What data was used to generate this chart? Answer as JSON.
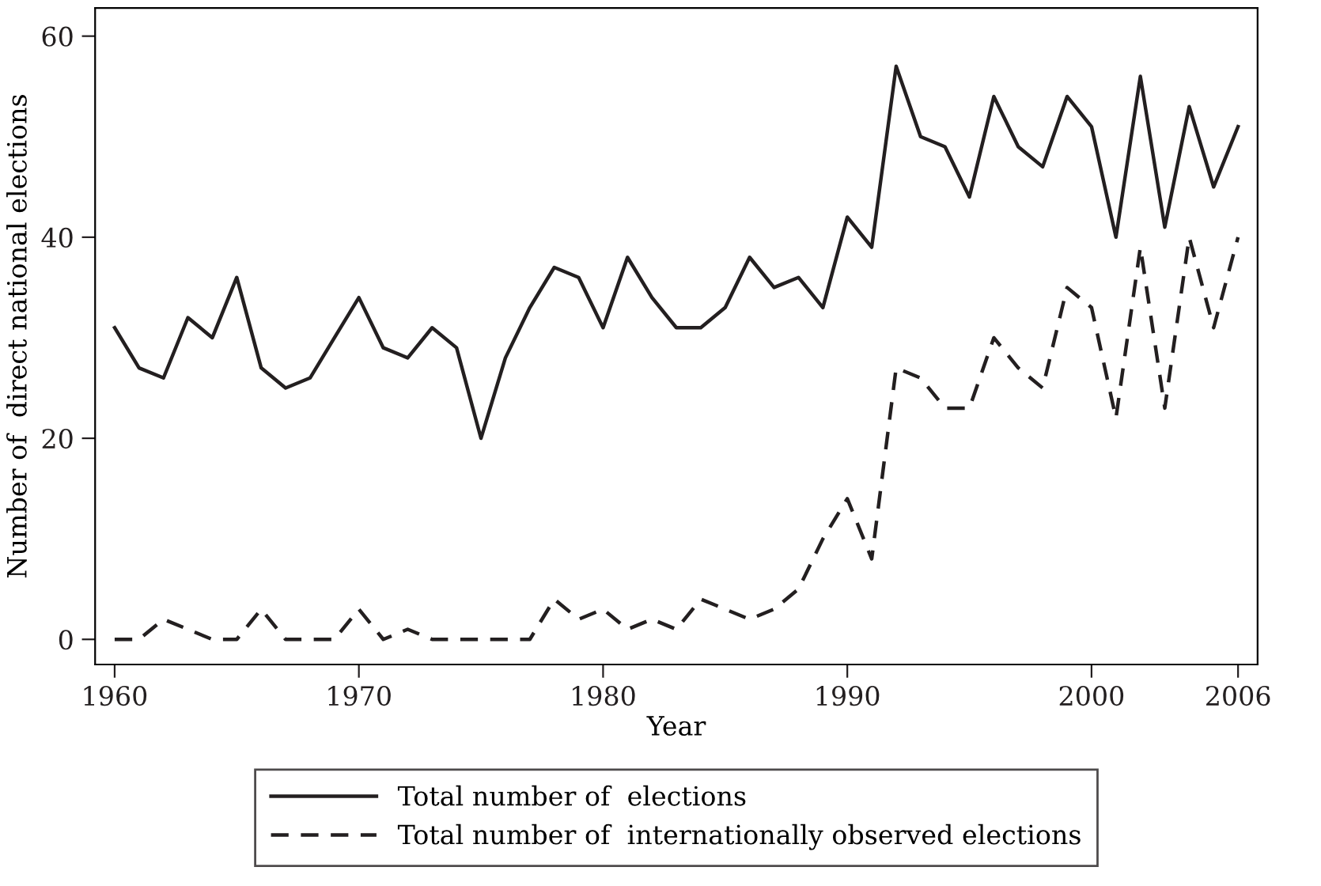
{
  "chart_data": {
    "type": "line",
    "xlabel": "Year",
    "ylabel": "Number of  direct national elections",
    "x": [
      1960,
      1961,
      1962,
      1963,
      1964,
      1965,
      1966,
      1967,
      1968,
      1969,
      1970,
      1971,
      1972,
      1973,
      1974,
      1975,
      1976,
      1977,
      1978,
      1979,
      1980,
      1981,
      1982,
      1983,
      1984,
      1985,
      1986,
      1987,
      1988,
      1989,
      1990,
      1991,
      1992,
      1993,
      1994,
      1995,
      1996,
      1997,
      1998,
      1999,
      2000,
      2001,
      2002,
      2003,
      2004,
      2005,
      2006
    ],
    "series": [
      {
        "name": "Total number of  elections",
        "color": "#231f20",
        "line_style": "solid",
        "values": [
          31,
          27,
          26,
          32,
          30,
          36,
          27,
          25,
          26,
          30,
          34,
          29,
          28,
          31,
          29,
          20,
          28,
          33,
          37,
          36,
          31,
          38,
          34,
          31,
          31,
          33,
          38,
          35,
          36,
          33,
          42,
          39,
          57,
          50,
          49,
          44,
          54,
          49,
          47,
          54,
          51,
          40,
          56,
          41,
          53,
          45,
          51
        ]
      },
      {
        "name": "Total number of  internationally observed elections",
        "color": "#231f20",
        "line_style": "dashed",
        "values": [
          0,
          0,
          2,
          1,
          0,
          0,
          3,
          0,
          0,
          0,
          3,
          0,
          1,
          0,
          0,
          0,
          0,
          0,
          4,
          2,
          3,
          1,
          2,
          1,
          4,
          3,
          2,
          3,
          5,
          10,
          14,
          8,
          27,
          26,
          23,
          23,
          30,
          27,
          25,
          35,
          33,
          22,
          39,
          23,
          40,
          31,
          40
        ]
      }
    ],
    "xlim": [
      1959.2,
      2006.8
    ],
    "ylim": [
      -2.5,
      62.8
    ],
    "xticks": [
      1960,
      1970,
      1980,
      1990,
      2000,
      2006
    ],
    "yticks": [
      0,
      20,
      40,
      60
    ],
    "grid": false,
    "legend": "bottom",
    "marker": "none"
  }
}
